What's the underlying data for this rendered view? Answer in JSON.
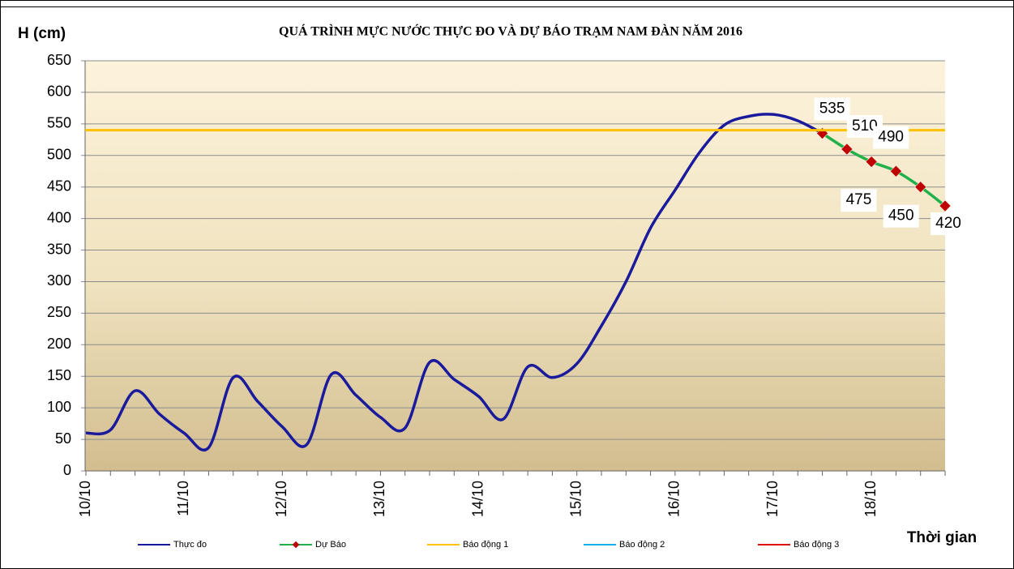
{
  "chart_data": {
    "type": "line",
    "title": "QUÁ TRÌNH MỰC NƯỚC THỰC ĐO VÀ DỰ BÁO TRẠM  NAM ĐÀN NĂM 2016",
    "y_label": "H (cm)",
    "x_label": "Thời gian",
    "categories": [
      "10/10",
      null,
      null,
      null,
      "11/10",
      null,
      null,
      null,
      "12/10",
      null,
      null,
      null,
      "13/10",
      null,
      null,
      null,
      "14/10",
      null,
      null,
      null,
      "15/10",
      null,
      null,
      null,
      "16/10",
      null,
      null,
      null,
      "17/10",
      null,
      null,
      null,
      "18/10",
      null,
      null,
      null
    ],
    "series": [
      {
        "name": "Thực đo",
        "color": "#1a1a9c",
        "values": [
          60,
          65,
          127,
          90,
          60,
          37,
          148,
          110,
          70,
          42,
          153,
          120,
          85,
          68,
          172,
          145,
          118,
          82,
          165,
          148,
          170,
          230,
          300,
          385,
          445,
          505,
          548,
          562,
          565,
          555,
          535,
          null,
          null,
          null,
          null,
          null
        ]
      },
      {
        "name": "Dự Báo",
        "color": "#22b04a",
        "marker_color": "#c00000",
        "values": [
          null,
          null,
          null,
          null,
          null,
          null,
          null,
          null,
          null,
          null,
          null,
          null,
          null,
          null,
          null,
          null,
          null,
          null,
          null,
          null,
          null,
          null,
          null,
          null,
          null,
          null,
          null,
          null,
          null,
          null,
          535,
          510,
          490,
          475,
          450,
          420
        ],
        "data_labels": true
      },
      {
        "name": "Báo động 1",
        "color": "#ffc000",
        "value": 540
      },
      {
        "name": "Báo động 2",
        "color": "#1ab0e8"
      },
      {
        "name": "Báo động 3",
        "color": "#e01010"
      }
    ],
    "ylim": [
      0,
      650
    ],
    "yticks": [
      0,
      50,
      100,
      150,
      200,
      250,
      300,
      350,
      400,
      450,
      500,
      550,
      600,
      650
    ],
    "grid": true
  }
}
